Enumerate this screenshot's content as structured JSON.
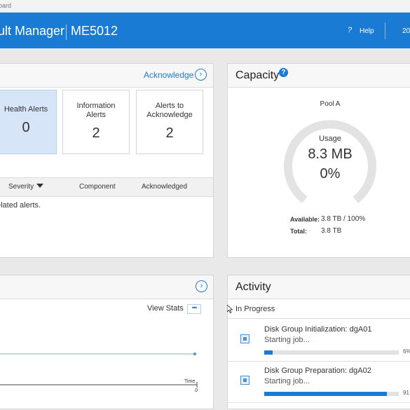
{
  "browser": {
    "tab_text": "oard"
  },
  "header": {
    "app_title": "ult Manager",
    "model": "ME5012",
    "help_icon": "?",
    "help_label": "Help",
    "date_fragment": "20",
    "accent_color": "#1a7bd4"
  },
  "alerts": {
    "acknowledge_link": "Acknowledge",
    "tiles": [
      {
        "label": "Health Alerts",
        "count": "0"
      },
      {
        "label": "Information\nAlerts",
        "count": "2"
      },
      {
        "label": "Alerts to\nAcknowledge",
        "count": "2"
      }
    ],
    "columns": {
      "severity": "Severity",
      "component": "Component",
      "acknowledged": "Acknowledged"
    },
    "empty_message": "elated alerts."
  },
  "capacity": {
    "title": "Capacity",
    "pool": "Pool A",
    "usage_label": "Usage",
    "usage_value": "8.3 MB",
    "usage_percent": "0%",
    "used_fraction": 0.0,
    "available_key": "Available:",
    "available_value": "3.8 TB / 100%",
    "total_key": "Total:",
    "total_value": "3.8 TB"
  },
  "performance": {
    "view_stats": "View Stats",
    "more_icon": "•••",
    "x_axis_label": "Time",
    "x_tick": "0"
  },
  "activity": {
    "title": "Activity",
    "section": "In Progress",
    "jobs": [
      {
        "title": "Disk Group Initialization: dgA01",
        "status": "Starting job...",
        "progress": 0.06,
        "pct_label": "6%"
      },
      {
        "title": "Disk Group Preparation: dgA02",
        "status": "Starting job...",
        "progress": 0.91,
        "pct_label": "91"
      }
    ]
  }
}
